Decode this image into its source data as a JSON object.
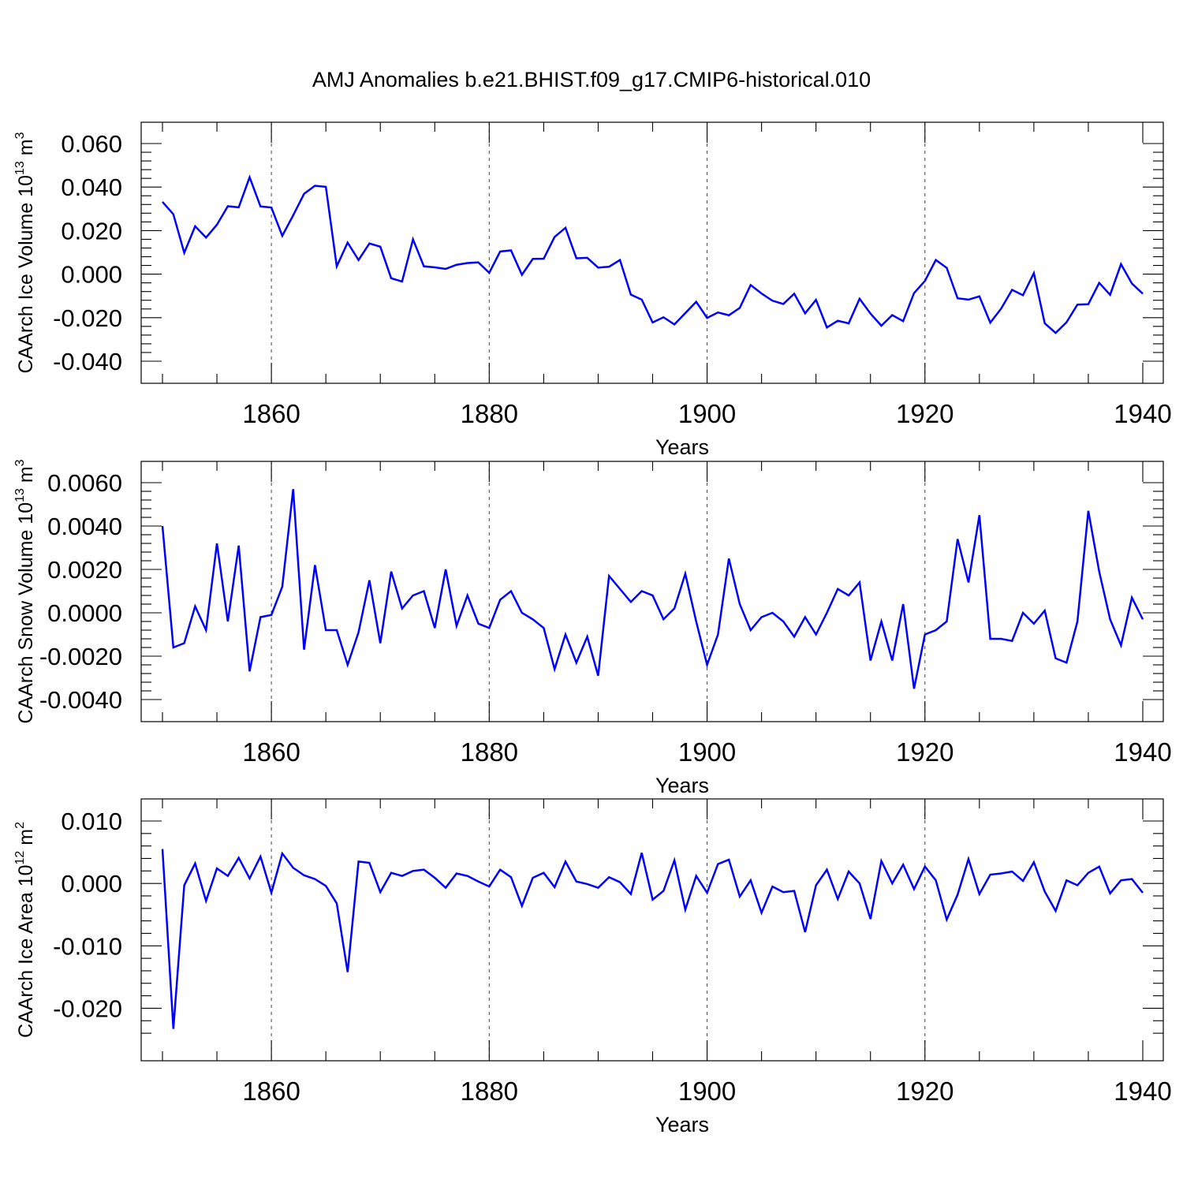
{
  "title": "AMJ Anomalies b.e21.BHIST.f09_g17.CMIP6-historical.010",
  "line_color": "#0000ff",
  "chart_data": [
    {
      "type": "line",
      "xlabel": "Years",
      "ylabel_main": "CAArch Ice Volume 10",
      "ylabel_exp": "13",
      "ylabel_unit": " m",
      "ylabel_unit_exp": "3",
      "xlim": [
        1850,
        1940
      ],
      "ylim": [
        -0.04,
        0.06
      ],
      "xticks": [
        1860,
        1880,
        1900,
        1920,
        1940
      ],
      "yticks": [
        0.06,
        0.04,
        0.02,
        0.0,
        -0.02,
        -0.04
      ],
      "ytick_labels": [
        "0.060",
        "0.040",
        "0.020",
        "0.000",
        "-0.020",
        "-0.040"
      ],
      "series": [
        {
          "x_start": 1850,
          "values": [
            0.0332,
            0.0275,
            0.0098,
            0.022,
            0.0168,
            0.0227,
            0.0312,
            0.0307,
            0.0445,
            0.0311,
            0.0306,
            0.0176,
            0.027,
            0.0369,
            0.0406,
            0.0401,
            0.0036,
            0.0145,
            0.0065,
            0.0141,
            0.0126,
            -0.0019,
            -0.0034,
            0.016,
            0.0036,
            0.0031,
            0.0024,
            0.0043,
            0.0051,
            0.0054,
            0.0006,
            0.0104,
            0.0109,
            -0.0003,
            0.007,
            0.0071,
            0.0171,
            0.0213,
            0.0073,
            0.0075,
            0.003,
            0.0034,
            0.0065,
            -0.0094,
            -0.0117,
            -0.0222,
            -0.0198,
            -0.0231,
            -0.0179,
            -0.0127,
            -0.0201,
            -0.0176,
            -0.0189,
            -0.0155,
            -0.005,
            -0.0089,
            -0.0122,
            -0.0137,
            -0.009,
            -0.018,
            -0.0118,
            -0.0245,
            -0.0214,
            -0.0226,
            -0.0113,
            -0.0181,
            -0.0237,
            -0.0188,
            -0.0216,
            -0.0087,
            -0.0031,
            0.0065,
            0.0029,
            -0.0111,
            -0.0117,
            -0.0102,
            -0.0223,
            -0.0158,
            -0.0072,
            -0.0097,
            0.0005,
            -0.0226,
            -0.027,
            -0.0221,
            -0.014,
            -0.0138,
            -0.004,
            -0.0095,
            0.0046,
            -0.0043,
            -0.009
          ]
        }
      ]
    },
    {
      "type": "line",
      "xlabel": "Years",
      "ylabel_main": "CAArch Snow Volume 10",
      "ylabel_exp": "13",
      "ylabel_unit": " m",
      "ylabel_unit_exp": "3",
      "xlim": [
        1850,
        1940
      ],
      "ylim": [
        -0.004,
        0.006
      ],
      "xticks": [
        1860,
        1880,
        1900,
        1920,
        1940
      ],
      "yticks": [
        0.006,
        0.004,
        0.002,
        0.0,
        -0.002,
        -0.004
      ],
      "ytick_labels": [
        "0.0060",
        "0.0040",
        "0.0020",
        "0.0000",
        "-0.0020",
        "-0.0040"
      ],
      "series": [
        {
          "x_start": 1850,
          "values": [
            0.004,
            -0.0016,
            -0.0014,
            0.0003,
            -0.0008,
            0.0032,
            -0.0004,
            0.0031,
            -0.0027,
            -0.0002,
            -0.0001,
            0.0012,
            0.0057,
            -0.0017,
            0.0022,
            -0.0008,
            -0.0008,
            -0.0024,
            -0.0009,
            0.0015,
            -0.0014,
            0.0019,
            0.0002,
            0.0008,
            0.001,
            -0.0007,
            0.002,
            -0.0006,
            0.0008,
            -0.0005,
            -0.0007,
            0.0006,
            0.001,
            0.0,
            -0.0003,
            -0.0007,
            -0.0026,
            -0.001,
            -0.0023,
            -0.0011,
            -0.0029,
            0.0017,
            0.0011,
            0.0005,
            0.001,
            0.0008,
            -0.0003,
            0.0002,
            0.0018,
            -0.0004,
            -0.0024,
            -0.001,
            0.0025,
            0.0004,
            -0.0008,
            -0.0002,
            0.0,
            -0.0004,
            -0.0011,
            -0.0002,
            -0.001,
            0.0,
            0.0011,
            0.0008,
            0.0014,
            -0.0022,
            -0.0004,
            -0.0022,
            0.0004,
            -0.0035,
            -0.001,
            -0.0008,
            -0.0004,
            0.0034,
            0.0014,
            0.0045,
            -0.0012,
            -0.0012,
            -0.0013,
            0.0,
            -0.0005,
            0.0001,
            -0.0021,
            -0.0023,
            -0.0004,
            0.0047,
            0.0019,
            -0.0003,
            -0.0015,
            0.0007,
            -0.0003
          ]
        }
      ]
    },
    {
      "type": "line",
      "xlabel": "Years",
      "ylabel_main": "CAArch Ice Area 10",
      "ylabel_exp": "12",
      "ylabel_unit": " m",
      "ylabel_unit_exp": "2",
      "xlim": [
        1850,
        1940
      ],
      "ylim": [
        -0.025,
        0.01
      ],
      "xticks": [
        1860,
        1880,
        1900,
        1920,
        1940
      ],
      "yticks": [
        0.01,
        0.0,
        -0.01,
        -0.02
      ],
      "ytick_labels": [
        "0.010",
        "0.000",
        "-0.010",
        "-0.020"
      ],
      "series": [
        {
          "x_start": 1850,
          "values": [
            0.0055,
            -0.0233,
            -0.0003,
            0.0032,
            -0.0028,
            0.0024,
            0.0012,
            0.0041,
            0.0008,
            0.0043,
            -0.0015,
            0.0048,
            0.0025,
            0.0013,
            0.0007,
            -0.0004,
            -0.0032,
            -0.0142,
            0.0035,
            0.0033,
            -0.0014,
            0.0017,
            0.0012,
            0.002,
            0.0022,
            0.0009,
            -0.0007,
            0.0016,
            0.0012,
            0.0003,
            -0.0005,
            0.0022,
            0.001,
            -0.0036,
            0.0009,
            0.0017,
            -0.0006,
            0.0035,
            0.0003,
            -0.0001,
            -0.0007,
            0.001,
            0.0002,
            -0.0017,
            0.0049,
            -0.0026,
            -0.0012,
            0.0037,
            -0.0042,
            0.0012,
            -0.0015,
            0.0031,
            0.0038,
            -0.0021,
            0.0005,
            -0.0047,
            -0.0005,
            -0.0014,
            -0.0012,
            -0.0078,
            -0.0003,
            0.0022,
            -0.0025,
            0.0019,
            0.0,
            -0.0057,
            0.0036,
            0.0,
            0.003,
            -0.0009,
            0.0027,
            0.0005,
            -0.0058,
            -0.0018,
            0.0039,
            -0.0017,
            0.0014,
            0.0016,
            0.0019,
            0.0004,
            0.0034,
            -0.0013,
            -0.0044,
            0.0005,
            -0.0003,
            0.0017,
            0.0027,
            -0.0016,
            0.0005,
            0.0007,
            -0.0015
          ]
        }
      ]
    }
  ]
}
